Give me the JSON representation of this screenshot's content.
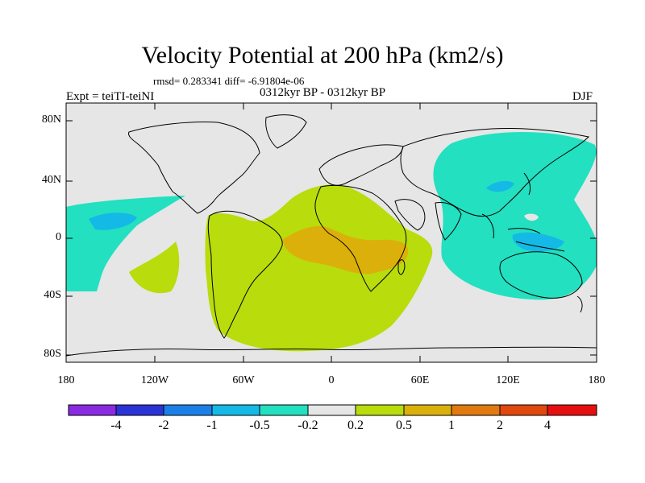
{
  "title": "Velocity Potential at 200 hPa (km2/s)",
  "stats_line": "rmsd= 0.283341 diff= -6.91804e-06",
  "experiment": "Expt = teiTI-teiNI",
  "period": "0312kyr BP - 0312kyr BP",
  "season": "DJF",
  "lat_labels": [
    "80N",
    "40N",
    "0",
    "40S",
    "80S"
  ],
  "lon_labels": [
    "180",
    "120W",
    "60W",
    "0",
    "60E",
    "120E",
    "180"
  ],
  "colorbar": {
    "labels": [
      "-4",
      "-2",
      "-1",
      "-0.5",
      "-0.2",
      "0.2",
      "0.5",
      "1",
      "2",
      "4"
    ],
    "colors": [
      "#8a2be2",
      "#2a34d6",
      "#1b7fe8",
      "#14b9e6",
      "#22e0c0",
      "#e6e6e6",
      "#b8dc0c",
      "#dcb00a",
      "#e07a10",
      "#e0480e",
      "#e60f0f"
    ]
  },
  "palette": {
    "neutral": "#e6e6e6",
    "teal": "#22e0c0",
    "cyan": "#14b9e6",
    "blue": "#1b7fe8",
    "lime": "#b8dc0c",
    "orange": "#dcb00a"
  }
}
